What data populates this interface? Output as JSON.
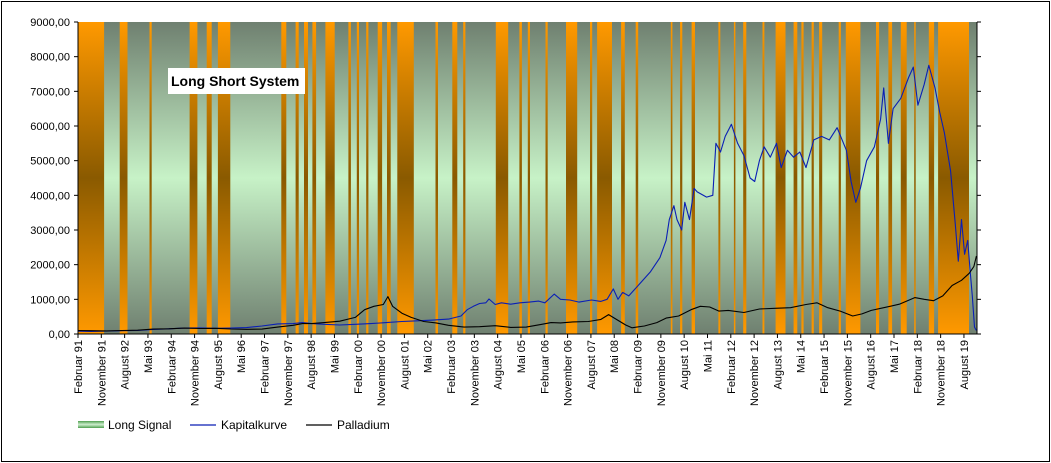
{
  "chart_data": {
    "type": "line",
    "title": "Long Short System",
    "xlabel": "",
    "ylabel": "",
    "ylim": [
      0,
      9000
    ],
    "y_ticks": [
      "0,00",
      "1000,00",
      "2000,00",
      "3000,00",
      "4000,00",
      "5000,00",
      "6000,00",
      "7000,00",
      "8000,00",
      "9000,00"
    ],
    "x_range": [
      1991.08,
      2020.0
    ],
    "x_ticks": [
      {
        "label": "Februar 91",
        "x": 1991.08
      },
      {
        "label": "November 91",
        "x": 1991.83
      },
      {
        "label": "August 92",
        "x": 1992.58
      },
      {
        "label": "Mai 93",
        "x": 1993.33
      },
      {
        "label": "Februar 94",
        "x": 1994.08
      },
      {
        "label": "November 94",
        "x": 1994.83
      },
      {
        "label": "August 95",
        "x": 1995.58
      },
      {
        "label": "Mai 96",
        "x": 1996.33
      },
      {
        "label": "Februar 97",
        "x": 1997.08
      },
      {
        "label": "November 97",
        "x": 1997.83
      },
      {
        "label": "August 98",
        "x": 1998.58
      },
      {
        "label": "Mai 99",
        "x": 1999.33
      },
      {
        "label": "Februar 00",
        "x": 2000.08
      },
      {
        "label": "November 00",
        "x": 2000.83
      },
      {
        "label": "August 01",
        "x": 2001.58
      },
      {
        "label": "Mai 02",
        "x": 2002.33
      },
      {
        "label": "Februar 03",
        "x": 2003.08
      },
      {
        "label": "November 03",
        "x": 2003.83
      },
      {
        "label": "August 04",
        "x": 2004.58
      },
      {
        "label": "Mai 05",
        "x": 2005.33
      },
      {
        "label": "Februar 06",
        "x": 2006.08
      },
      {
        "label": "November 06",
        "x": 2006.83
      },
      {
        "label": "August 07",
        "x": 2007.58
      },
      {
        "label": "Mai 08",
        "x": 2008.33
      },
      {
        "label": "Februar 09",
        "x": 2009.08
      },
      {
        "label": "November 09",
        "x": 2009.83
      },
      {
        "label": "August 10",
        "x": 2010.58
      },
      {
        "label": "Mai 11",
        "x": 2011.33
      },
      {
        "label": "Februar 12",
        "x": 2012.08
      },
      {
        "label": "November 12",
        "x": 2012.83
      },
      {
        "label": "August 13",
        "x": 2013.58
      },
      {
        "label": "Mai 14",
        "x": 2014.33
      },
      {
        "label": "Februar 15",
        "x": 2015.08
      },
      {
        "label": "November 15",
        "x": 2015.83
      },
      {
        "label": "August 16",
        "x": 2016.58
      },
      {
        "label": "Mai 17",
        "x": 2017.33
      },
      {
        "label": "Februar 18",
        "x": 2018.08
      },
      {
        "label": "November 18",
        "x": 2018.83
      },
      {
        "label": "August 19",
        "x": 2019.58
      }
    ],
    "long_signal_periods": [
      [
        1991.08,
        1991.92
      ],
      [
        1992.42,
        1992.67
      ],
      [
        1993.38,
        1993.45
      ],
      [
        1994.67,
        1994.92
      ],
      [
        1995.22,
        1995.38
      ],
      [
        1995.58,
        1995.98
      ],
      [
        1997.62,
        1997.78
      ],
      [
        1998.08,
        1998.18
      ],
      [
        1998.35,
        1998.48
      ],
      [
        1998.62,
        1998.74
      ],
      [
        1999.04,
        1999.34
      ],
      [
        1999.78,
        1999.86
      ],
      [
        2000.05,
        2000.12
      ],
      [
        2000.35,
        2000.42
      ],
      [
        2000.72,
        2000.86
      ],
      [
        2001.02,
        2001.14
      ],
      [
        2001.35,
        2001.88
      ],
      [
        2002.58,
        2002.66
      ],
      [
        2003.12,
        2003.28
      ],
      [
        2003.47,
        2003.54
      ],
      [
        2004.52,
        2004.92
      ],
      [
        2005.28,
        2005.36
      ],
      [
        2005.55,
        2005.62
      ],
      [
        2006.12,
        2006.19
      ],
      [
        2006.78,
        2007.14
      ],
      [
        2007.55,
        2007.62
      ],
      [
        2007.78,
        2008.26
      ],
      [
        2008.55,
        2008.67
      ],
      [
        2009.02,
        2009.1
      ],
      [
        2010.15,
        2010.2
      ],
      [
        2010.45,
        2010.52
      ],
      [
        2010.82,
        2010.93
      ],
      [
        2011.68,
        2011.74
      ],
      [
        2012.18,
        2012.22
      ],
      [
        2012.48,
        2012.58
      ],
      [
        2013.1,
        2013.16
      ],
      [
        2013.52,
        2013.84
      ],
      [
        2014.1,
        2014.22
      ],
      [
        2014.35,
        2014.42
      ],
      [
        2014.68,
        2014.75
      ],
      [
        2014.92,
        2015.02
      ],
      [
        2015.55,
        2015.62
      ],
      [
        2015.78,
        2016.25
      ],
      [
        2016.75,
        2016.85
      ],
      [
        2017.15,
        2017.27
      ],
      [
        2017.55,
        2017.74
      ],
      [
        2017.98,
        2018.02
      ],
      [
        2018.45,
        2018.62
      ],
      [
        2018.75,
        2019.98
      ]
    ],
    "series": [
      {
        "name": "Kapitalkurve",
        "color": "#0a1fb5",
        "points": [
          [
            1991.08,
            80
          ],
          [
            1991.5,
            75
          ],
          [
            1992.0,
            85
          ],
          [
            1992.5,
            95
          ],
          [
            1993.0,
            105
          ],
          [
            1993.5,
            130
          ],
          [
            1994.0,
            150
          ],
          [
            1994.5,
            170
          ],
          [
            1995.0,
            175
          ],
          [
            1995.5,
            165
          ],
          [
            1996.0,
            170
          ],
          [
            1996.5,
            185
          ],
          [
            1997.0,
            230
          ],
          [
            1997.5,
            290
          ],
          [
            1998.0,
            300
          ],
          [
            1998.3,
            330
          ],
          [
            1998.6,
            300
          ],
          [
            1999.0,
            280
          ],
          [
            1999.5,
            260
          ],
          [
            2000.0,
            280
          ],
          [
            2000.5,
            300
          ],
          [
            2001.0,
            330
          ],
          [
            2001.5,
            360
          ],
          [
            2002.0,
            380
          ],
          [
            2002.5,
            400
          ],
          [
            2003.0,
            430
          ],
          [
            2003.4,
            520
          ],
          [
            2003.6,
            700
          ],
          [
            2003.8,
            800
          ],
          [
            2004.0,
            880
          ],
          [
            2004.2,
            900
          ],
          [
            2004.3,
            1010
          ],
          [
            2004.5,
            850
          ],
          [
            2004.7,
            900
          ],
          [
            2005.0,
            860
          ],
          [
            2005.3,
            900
          ],
          [
            2005.6,
            920
          ],
          [
            2005.9,
            950
          ],
          [
            2006.1,
            900
          ],
          [
            2006.4,
            1150
          ],
          [
            2006.6,
            1000
          ],
          [
            2006.9,
            980
          ],
          [
            2007.2,
            920
          ],
          [
            2007.6,
            980
          ],
          [
            2007.9,
            940
          ],
          [
            2008.1,
            1000
          ],
          [
            2008.3,
            1300
          ],
          [
            2008.45,
            1000
          ],
          [
            2008.6,
            1200
          ],
          [
            2008.8,
            1100
          ],
          [
            2009.0,
            1300
          ],
          [
            2009.2,
            1500
          ],
          [
            2009.5,
            1800
          ],
          [
            2009.8,
            2200
          ],
          [
            2010.0,
            2700
          ],
          [
            2010.1,
            3300
          ],
          [
            2010.25,
            3700
          ],
          [
            2010.35,
            3300
          ],
          [
            2010.5,
            3000
          ],
          [
            2010.6,
            3800
          ],
          [
            2010.75,
            3300
          ],
          [
            2010.9,
            4200
          ],
          [
            2011.0,
            4100
          ],
          [
            2011.3,
            3950
          ],
          [
            2011.5,
            4000
          ],
          [
            2011.6,
            5500
          ],
          [
            2011.75,
            5250
          ],
          [
            2011.9,
            5700
          ],
          [
            2012.1,
            6050
          ],
          [
            2012.3,
            5500
          ],
          [
            2012.5,
            5150
          ],
          [
            2012.7,
            4500
          ],
          [
            2012.85,
            4400
          ],
          [
            2013.0,
            5000
          ],
          [
            2013.15,
            5400
          ],
          [
            2013.35,
            5100
          ],
          [
            2013.55,
            5500
          ],
          [
            2013.7,
            4800
          ],
          [
            2013.9,
            5300
          ],
          [
            2014.1,
            5100
          ],
          [
            2014.3,
            5250
          ],
          [
            2014.5,
            4800
          ],
          [
            2014.75,
            5600
          ],
          [
            2015.0,
            5700
          ],
          [
            2015.25,
            5600
          ],
          [
            2015.5,
            5950
          ],
          [
            2015.8,
            5300
          ],
          [
            2015.95,
            4400
          ],
          [
            2016.1,
            3800
          ],
          [
            2016.25,
            4200
          ],
          [
            2016.45,
            5000
          ],
          [
            2016.7,
            5400
          ],
          [
            2016.9,
            6200
          ],
          [
            2017.0,
            7100
          ],
          [
            2017.15,
            5500
          ],
          [
            2017.3,
            6500
          ],
          [
            2017.55,
            6800
          ],
          [
            2017.8,
            7400
          ],
          [
            2017.95,
            7700
          ],
          [
            2018.1,
            6600
          ],
          [
            2018.3,
            7200
          ],
          [
            2018.45,
            7750
          ],
          [
            2018.65,
            7100
          ],
          [
            2018.8,
            6400
          ],
          [
            2018.95,
            5800
          ],
          [
            2019.15,
            4700
          ],
          [
            2019.3,
            3200
          ],
          [
            2019.4,
            2100
          ],
          [
            2019.5,
            3300
          ],
          [
            2019.6,
            2300
          ],
          [
            2019.7,
            2700
          ],
          [
            2019.78,
            1800
          ],
          [
            2019.85,
            1100
          ],
          [
            2019.92,
            200
          ],
          [
            2019.98,
            100
          ]
        ]
      },
      {
        "name": "Palladium",
        "color": "#000000",
        "points": [
          [
            1991.08,
            100
          ],
          [
            1991.5,
            95
          ],
          [
            1992.0,
            90
          ],
          [
            1992.5,
            100
          ],
          [
            1993.0,
            110
          ],
          [
            1993.5,
            140
          ],
          [
            1994.0,
            150
          ],
          [
            1994.5,
            170
          ],
          [
            1995.0,
            160
          ],
          [
            1995.5,
            165
          ],
          [
            1996.0,
            145
          ],
          [
            1996.5,
            135
          ],
          [
            1997.0,
            140
          ],
          [
            1997.5,
            200
          ],
          [
            1998.0,
            250
          ],
          [
            1998.3,
            300
          ],
          [
            1998.6,
            300
          ],
          [
            1999.0,
            330
          ],
          [
            1999.5,
            370
          ],
          [
            2000.0,
            480
          ],
          [
            2000.3,
            700
          ],
          [
            2000.6,
            800
          ],
          [
            2000.9,
            850
          ],
          [
            2001.05,
            1080
          ],
          [
            2001.2,
            800
          ],
          [
            2001.5,
            600
          ],
          [
            2001.8,
            480
          ],
          [
            2002.2,
            360
          ],
          [
            2002.6,
            320
          ],
          [
            2003.0,
            250
          ],
          [
            2003.5,
            200
          ],
          [
            2004.0,
            210
          ],
          [
            2004.5,
            240
          ],
          [
            2005.0,
            190
          ],
          [
            2005.5,
            200
          ],
          [
            2006.0,
            280
          ],
          [
            2006.3,
            330
          ],
          [
            2006.6,
            320
          ],
          [
            2007.0,
            350
          ],
          [
            2007.5,
            360
          ],
          [
            2007.9,
            420
          ],
          [
            2008.15,
            560
          ],
          [
            2008.4,
            420
          ],
          [
            2008.7,
            260
          ],
          [
            2008.9,
            180
          ],
          [
            2009.3,
            230
          ],
          [
            2009.7,
            330
          ],
          [
            2010.0,
            460
          ],
          [
            2010.4,
            520
          ],
          [
            2010.8,
            700
          ],
          [
            2011.1,
            800
          ],
          [
            2011.4,
            780
          ],
          [
            2011.7,
            660
          ],
          [
            2012.0,
            680
          ],
          [
            2012.5,
            620
          ],
          [
            2013.0,
            720
          ],
          [
            2013.5,
            740
          ],
          [
            2014.0,
            760
          ],
          [
            2014.5,
            850
          ],
          [
            2014.85,
            900
          ],
          [
            2015.2,
            760
          ],
          [
            2015.6,
            660
          ],
          [
            2016.0,
            520
          ],
          [
            2016.3,
            580
          ],
          [
            2016.6,
            680
          ],
          [
            2017.0,
            760
          ],
          [
            2017.5,
            860
          ],
          [
            2018.0,
            1050
          ],
          [
            2018.3,
            1000
          ],
          [
            2018.6,
            960
          ],
          [
            2018.9,
            1100
          ],
          [
            2019.2,
            1400
          ],
          [
            2019.5,
            1550
          ],
          [
            2019.75,
            1750
          ],
          [
            2019.9,
            1950
          ],
          [
            2019.98,
            2250
          ]
        ]
      }
    ],
    "legend": {
      "placement": "bottom-left",
      "items": [
        {
          "label": "Long Signal"
        },
        {
          "label": "Kapitalkurve"
        },
        {
          "label": "Palladium"
        }
      ]
    },
    "colors": {
      "long_band_edge": "#ff9900",
      "long_band_center": "#8a5a00",
      "background_center": "#c7f2c7",
      "background_edge": "#6f8070",
      "legend_swatch": "#6fbf6f"
    },
    "grid": false
  }
}
